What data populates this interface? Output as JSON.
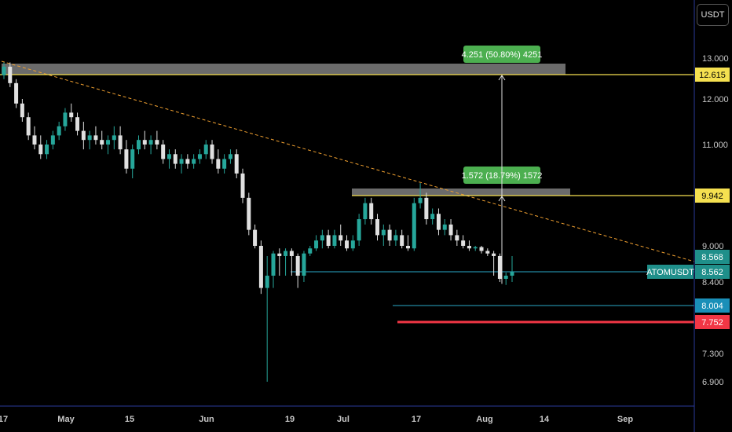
{
  "currency_button": "USDT",
  "colors": {
    "up": "#26a69a",
    "down": "#e0e0e0",
    "resistance_line": "#f5e050",
    "support_line": "#2aa9c9",
    "stop_line": "#f23645",
    "trendline": "#f0a030",
    "zone": "#6b6b6b",
    "measure_label": "#4caf50",
    "axis": "#2a3a9a"
  },
  "chart_data": {
    "type": "candlestick",
    "symbol": "ATOMUSDT",
    "y_axis_ticks": [
      "13.000",
      "12.000",
      "11.000",
      "9.000",
      "8.400",
      "7.300",
      "6.900"
    ],
    "x_axis_ticks": [
      "17",
      "May",
      "15",
      "Jun",
      "19",
      "Jul",
      "17",
      "Aug",
      "14",
      "Sep"
    ],
    "price_tags": [
      {
        "id": "resistance-high",
        "label": "12.615",
        "value": 12.615
      },
      {
        "id": "resistance-mid",
        "label": "9.942",
        "value": 9.942
      },
      {
        "id": "upper",
        "label": "8.568",
        "value": 8.568
      },
      {
        "id": "current",
        "label": "8.562",
        "value": 8.562
      },
      {
        "id": "support",
        "label": "8.004",
        "value": 8.004
      },
      {
        "id": "stop",
        "label": "7.752",
        "value": 7.752
      }
    ],
    "measurements": [
      {
        "id": "target-1",
        "label": "1.572 (18.79%) 1572",
        "from": 8.37,
        "to": 9.942
      },
      {
        "id": "target-2",
        "label": "4.251 (50.80%) 4251",
        "from": 8.37,
        "to": 12.615
      }
    ],
    "candles": [
      [
        12.6,
        12.9,
        12.5,
        12.8
      ],
      [
        12.8,
        12.9,
        12.3,
        12.4
      ],
      [
        12.4,
        12.5,
        11.8,
        11.9
      ],
      [
        11.9,
        12.0,
        11.5,
        11.6
      ],
      [
        11.6,
        11.7,
        11.1,
        11.2
      ],
      [
        11.2,
        11.4,
        10.9,
        11.0
      ],
      [
        11.0,
        11.2,
        10.7,
        10.8
      ],
      [
        10.8,
        11.1,
        10.7,
        11.0
      ],
      [
        11.0,
        11.3,
        10.9,
        11.2
      ],
      [
        11.2,
        11.5,
        11.1,
        11.4
      ],
      [
        11.4,
        11.8,
        11.3,
        11.7
      ],
      [
        11.7,
        11.9,
        11.5,
        11.6
      ],
      [
        11.6,
        11.7,
        11.2,
        11.3
      ],
      [
        11.3,
        11.5,
        10.9,
        11.1
      ],
      [
        11.1,
        11.3,
        10.9,
        11.2
      ],
      [
        11.2,
        11.4,
        11.0,
        11.1
      ],
      [
        11.1,
        11.3,
        10.9,
        11.0
      ],
      [
        11.0,
        11.2,
        10.8,
        11.1
      ],
      [
        11.1,
        11.4,
        10.9,
        11.2
      ],
      [
        11.2,
        11.4,
        10.8,
        10.9
      ],
      [
        10.9,
        11.1,
        10.4,
        10.5
      ],
      [
        10.5,
        11.0,
        10.3,
        10.9
      ],
      [
        10.9,
        11.2,
        10.8,
        11.1
      ],
      [
        11.1,
        11.3,
        10.9,
        11.0
      ],
      [
        11.0,
        11.2,
        10.8,
        11.1
      ],
      [
        11.1,
        11.3,
        10.9,
        11.0
      ],
      [
        11.0,
        11.1,
        10.6,
        10.7
      ],
      [
        10.7,
        10.9,
        10.5,
        10.8
      ],
      [
        10.8,
        10.9,
        10.5,
        10.6
      ],
      [
        10.6,
        10.8,
        10.4,
        10.7
      ],
      [
        10.7,
        10.8,
        10.5,
        10.6
      ],
      [
        10.6,
        10.8,
        10.5,
        10.7
      ],
      [
        10.7,
        10.9,
        10.6,
        10.8
      ],
      [
        10.8,
        11.1,
        10.7,
        11.0
      ],
      [
        11.0,
        11.1,
        10.6,
        10.7
      ],
      [
        10.7,
        10.9,
        10.4,
        10.5
      ],
      [
        10.5,
        10.8,
        10.4,
        10.7
      ],
      [
        10.7,
        10.9,
        10.6,
        10.8
      ],
      [
        10.8,
        10.9,
        10.3,
        10.4
      ],
      [
        10.4,
        10.5,
        9.8,
        9.9
      ],
      [
        9.9,
        10.0,
        9.2,
        9.3
      ],
      [
        9.3,
        9.4,
        8.9,
        9.0
      ],
      [
        9.0,
        9.1,
        8.2,
        8.3
      ],
      [
        8.3,
        8.6,
        6.9,
        8.5
      ],
      [
        8.5,
        8.8,
        8.3,
        8.7
      ],
      [
        8.7,
        8.9,
        8.5,
        8.6
      ],
      [
        8.6,
        8.9,
        8.5,
        8.8
      ],
      [
        8.8,
        8.9,
        8.5,
        8.6
      ],
      [
        8.6,
        8.7,
        8.3,
        8.5
      ],
      [
        8.5,
        8.8,
        8.4,
        8.7
      ],
      [
        8.7,
        9.0,
        8.6,
        8.9
      ],
      [
        8.9,
        9.2,
        8.8,
        9.1
      ],
      [
        9.1,
        9.3,
        8.9,
        9.2
      ],
      [
        9.2,
        9.3,
        8.9,
        9.0
      ],
      [
        9.0,
        9.3,
        8.9,
        9.2
      ],
      [
        9.2,
        9.4,
        9.0,
        9.1
      ],
      [
        9.1,
        9.2,
        8.8,
        8.9
      ],
      [
        8.9,
        9.2,
        8.8,
        9.1
      ],
      [
        9.1,
        9.6,
        9.0,
        9.5
      ],
      [
        9.5,
        9.9,
        9.4,
        9.8
      ],
      [
        9.8,
        9.9,
        9.4,
        9.5
      ],
      [
        9.5,
        9.6,
        9.1,
        9.2
      ],
      [
        9.2,
        9.4,
        9.0,
        9.3
      ],
      [
        9.3,
        9.4,
        9.0,
        9.1
      ],
      [
        9.1,
        9.3,
        9.0,
        9.2
      ],
      [
        9.2,
        9.3,
        8.9,
        9.0
      ],
      [
        9.0,
        9.2,
        8.8,
        8.9
      ],
      [
        8.9,
        9.9,
        8.8,
        9.8
      ],
      [
        9.8,
        10.2,
        9.7,
        9.9
      ],
      [
        9.9,
        10.0,
        9.4,
        9.5
      ],
      [
        9.5,
        9.7,
        9.4,
        9.6
      ],
      [
        9.6,
        9.7,
        9.2,
        9.3
      ],
      [
        9.3,
        9.5,
        9.2,
        9.4
      ],
      [
        9.4,
        9.5,
        9.1,
        9.2
      ],
      [
        9.2,
        9.3,
        9.0,
        9.1
      ],
      [
        9.1,
        9.2,
        8.9,
        9.0
      ],
      [
        9.0,
        9.1,
        8.8,
        8.9
      ],
      [
        8.9,
        9.0,
        8.8,
        8.95
      ],
      [
        8.95,
        9.0,
        8.7,
        8.8
      ],
      [
        8.8,
        8.9,
        8.6,
        8.7
      ],
      [
        8.7,
        8.8,
        8.5,
        8.6
      ],
      [
        8.6,
        8.7,
        8.4,
        8.45
      ],
      [
        8.45,
        8.55,
        8.35,
        8.5
      ],
      [
        8.5,
        8.6,
        8.4,
        8.56
      ]
    ]
  }
}
